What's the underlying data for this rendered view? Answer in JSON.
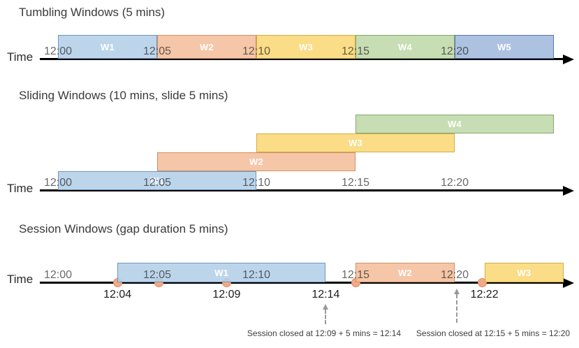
{
  "palette": {
    "blue": {
      "fill": "#B4CFE8",
      "border": "#6D96BE"
    },
    "orange": {
      "fill": "#F4BE9B",
      "border": "#CF9066"
    },
    "yellow": {
      "fill": "#FAD776",
      "border": "#CFAE45"
    },
    "green": {
      "fill": "#BFD8A8",
      "border": "#87A86C"
    },
    "periwinkle": {
      "fill": "#A2B9DD",
      "border": "#5577B0"
    }
  },
  "axis": {
    "tick_labels": [
      "12:00",
      "12:05",
      "12:10",
      "12:15",
      "12:20"
    ]
  },
  "charts": [
    {
      "id": "tumbling",
      "title": "Tumbling Windows (5 mins)",
      "time_label": "Time",
      "ticks": [
        {
          "label": "12:00",
          "at": 0
        },
        {
          "label": "12:05",
          "at": 5
        },
        {
          "label": "12:10",
          "at": 10
        },
        {
          "label": "12:15",
          "at": 15
        },
        {
          "label": "12:20",
          "at": 20
        }
      ],
      "bars": [
        {
          "label": "W1",
          "color": "blue",
          "start": 0,
          "end": 5
        },
        {
          "label": "W2",
          "color": "orange",
          "start": 5,
          "end": 10
        },
        {
          "label": "W3",
          "color": "yellow",
          "start": 10,
          "end": 15
        },
        {
          "label": "W4",
          "color": "green",
          "start": 15,
          "end": 20
        },
        {
          "label": "W5",
          "color": "periwinkle",
          "start": 20,
          "end": 25
        }
      ]
    },
    {
      "id": "sliding",
      "title": "Sliding Windows (10 mins, slide 5 mins)",
      "time_label": "Time",
      "ticks": [
        {
          "label": "12:00",
          "at": 0
        },
        {
          "label": "12:05",
          "at": 5
        },
        {
          "label": "12:10",
          "at": 10
        },
        {
          "label": "12:15",
          "at": 15
        },
        {
          "label": "12:20",
          "at": 20
        }
      ],
      "bars": [
        {
          "label": "W1",
          "color": "blue",
          "start": 0,
          "end": 10,
          "row": 0
        },
        {
          "label": "W2",
          "color": "orange",
          "start": 5,
          "end": 15,
          "row": 1
        },
        {
          "label": "W3",
          "color": "yellow",
          "start": 10,
          "end": 20,
          "row": 2
        },
        {
          "label": "W4",
          "color": "green",
          "start": 15,
          "end": 25,
          "row": 3
        }
      ]
    },
    {
      "id": "session",
      "title": "Session Windows (gap duration 5 mins)",
      "time_label": "Time",
      "ticks": [
        {
          "label": "12:00",
          "at": 0
        },
        {
          "label": "12:05",
          "at": 5
        },
        {
          "label": "12:10",
          "at": 10
        },
        {
          "label": "12:15",
          "at": 15
        },
        {
          "label": "12:20",
          "at": 20
        }
      ],
      "bars": [
        {
          "label": "W1",
          "color": "blue",
          "start": 3,
          "end": 13.5
        },
        {
          "label": "W2",
          "color": "orange",
          "start": 15,
          "end": 20
        },
        {
          "label": "W3",
          "color": "yellow",
          "start": 21.5,
          "end": 25.5
        }
      ],
      "event_dots_at": [
        3,
        5.1,
        8.5,
        15,
        21.4
      ],
      "event_labels": [
        {
          "text": "12:04",
          "at": 3
        },
        {
          "text": "12:09",
          "at": 8.5
        },
        {
          "text": "12:14",
          "at": 13.5
        },
        {
          "text": "12:22",
          "at": 21.5
        }
      ],
      "annotations": [
        {
          "text": "Session closed at 12:09 + 5 mins = 12:14"
        },
        {
          "text": "Session closed at 12:15 + 5 mins = 12:20"
        }
      ]
    }
  ]
}
